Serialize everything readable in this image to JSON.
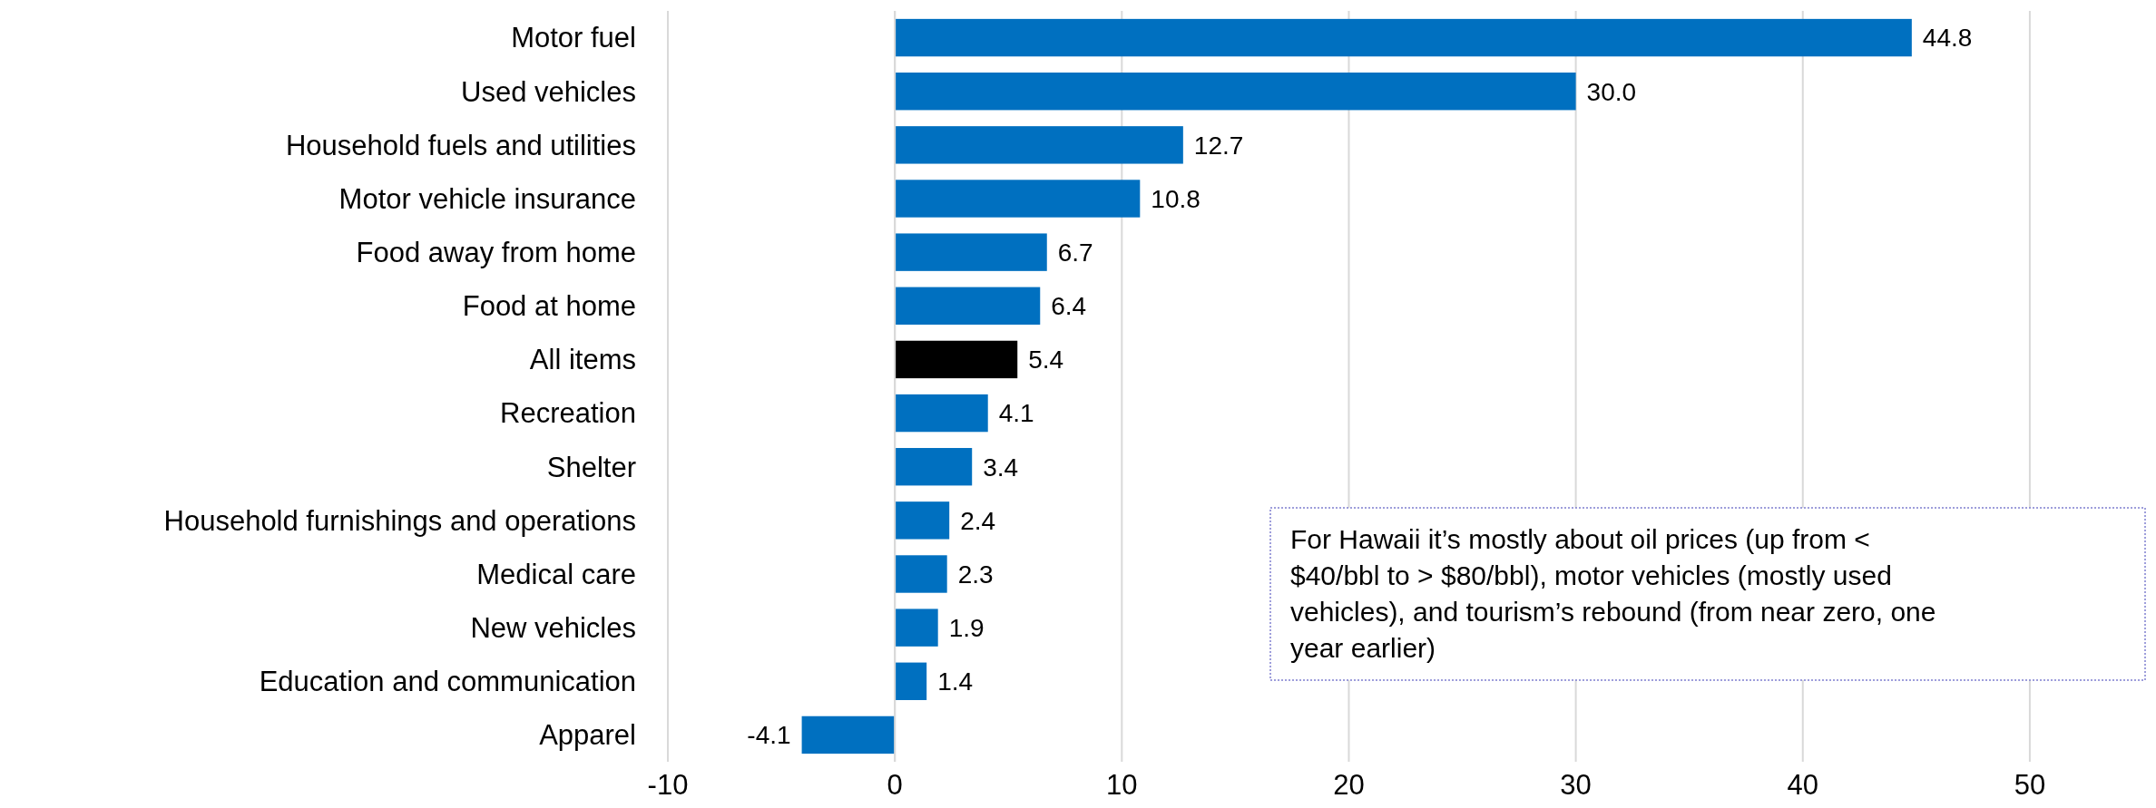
{
  "chart_data": {
    "type": "bar",
    "orientation": "horizontal",
    "categories": [
      "Motor fuel",
      "Used vehicles",
      "Household fuels and utilities",
      "Motor vehicle insurance",
      "Food away from home",
      "Food at home",
      "All items",
      "Recreation",
      "Shelter",
      "Household furnishings and operations",
      "Medical care",
      "New vehicles",
      "Education and communication",
      "Apparel"
    ],
    "values": [
      44.8,
      30.0,
      12.7,
      10.8,
      6.7,
      6.4,
      5.4,
      4.1,
      3.4,
      2.4,
      2.3,
      1.9,
      1.4,
      -4.1
    ],
    "value_labels": [
      "44.8",
      "30.0",
      "12.7",
      "10.8",
      "6.7",
      "6.4",
      "5.4",
      "4.1",
      "3.4",
      "2.4",
      "2.3",
      "1.9",
      "1.4",
      "-4.1"
    ],
    "colors": [
      "#0070c0",
      "#0070c0",
      "#0070c0",
      "#0070c0",
      "#0070c0",
      "#0070c0",
      "#000000",
      "#0070c0",
      "#0070c0",
      "#0070c0",
      "#0070c0",
      "#0070c0",
      "#0070c0",
      "#0070c0"
    ],
    "xlim": [
      -10,
      55
    ],
    "xticks": [
      -10,
      0,
      10,
      20,
      30,
      40,
      50
    ],
    "grid": "x",
    "annotations": [
      "For Hawaii it’s mostly about oil prices (up from < $40/bbl to > $80/bbl), motor vehicles (mostly used vehicles), and tourism’s rebound (from near zero, one year earlier)"
    ]
  }
}
